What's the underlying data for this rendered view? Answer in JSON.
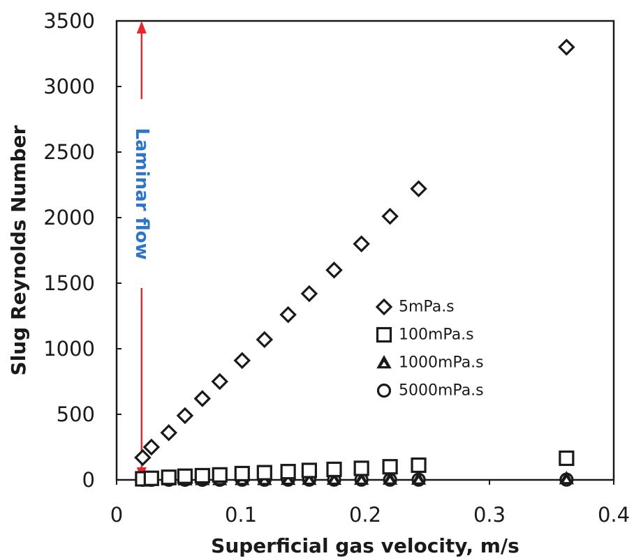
{
  "chart_data": {
    "type": "scatter",
    "xlabel": "Superficial gas velocity, m/s",
    "ylabel": "Slug Reynolds Number",
    "xlim": [
      0,
      0.4
    ],
    "ylim": [
      0,
      3500
    ],
    "x_ticks": [
      "0",
      "0.1",
      "0.2",
      "0.3",
      "0.4"
    ],
    "y_ticks": [
      "0",
      "500",
      "1000",
      "1500",
      "2000",
      "2500",
      "3000",
      "3500"
    ],
    "grid": false,
    "legend_position": "center-right",
    "series": [
      {
        "name": "5mPa.s",
        "marker": "diamond",
        "x": [
          0.021,
          0.028,
          0.042,
          0.055,
          0.069,
          0.083,
          0.101,
          0.119,
          0.138,
          0.155,
          0.175,
          0.197,
          0.22,
          0.243,
          0.362
        ],
        "y": [
          170,
          250,
          360,
          490,
          620,
          750,
          910,
          1070,
          1260,
          1420,
          1600,
          1800,
          2010,
          2220,
          3300
        ]
      },
      {
        "name": "100mPa.s",
        "marker": "square",
        "x": [
          0.021,
          0.028,
          0.042,
          0.055,
          0.069,
          0.083,
          0.101,
          0.119,
          0.138,
          0.155,
          0.175,
          0.197,
          0.22,
          0.243,
          0.362
        ],
        "y": [
          8,
          12,
          20,
          28,
          32,
          38,
          48,
          55,
          63,
          72,
          80,
          88,
          100,
          112,
          165
        ]
      },
      {
        "name": "1000mPa.s",
        "marker": "triangle",
        "x": [
          0.021,
          0.028,
          0.042,
          0.055,
          0.069,
          0.083,
          0.101,
          0.119,
          0.138,
          0.155,
          0.175,
          0.197,
          0.22,
          0.243,
          0.362
        ],
        "y": [
          1,
          1,
          2,
          2,
          3,
          3,
          4,
          4,
          5,
          5,
          6,
          6,
          7,
          7,
          10
        ]
      },
      {
        "name": "5000mPa.s",
        "marker": "circle",
        "x": [
          0.021,
          0.028,
          0.042,
          0.055,
          0.069,
          0.083,
          0.101,
          0.119,
          0.138,
          0.155,
          0.175,
          0.197,
          0.22,
          0.243,
          0.362
        ],
        "y": [
          0.3,
          0.4,
          0.5,
          0.6,
          0.7,
          0.8,
          0.9,
          1,
          1.1,
          1.2,
          1.3,
          1.4,
          1.5,
          1.6,
          2
        ]
      }
    ],
    "annotations": [
      {
        "text": "Laminar flow",
        "x": 0.01,
        "y_range": [
          0,
          3500
        ],
        "arrow_color": "#e8262b",
        "text_color": "#2e75c8"
      }
    ]
  }
}
